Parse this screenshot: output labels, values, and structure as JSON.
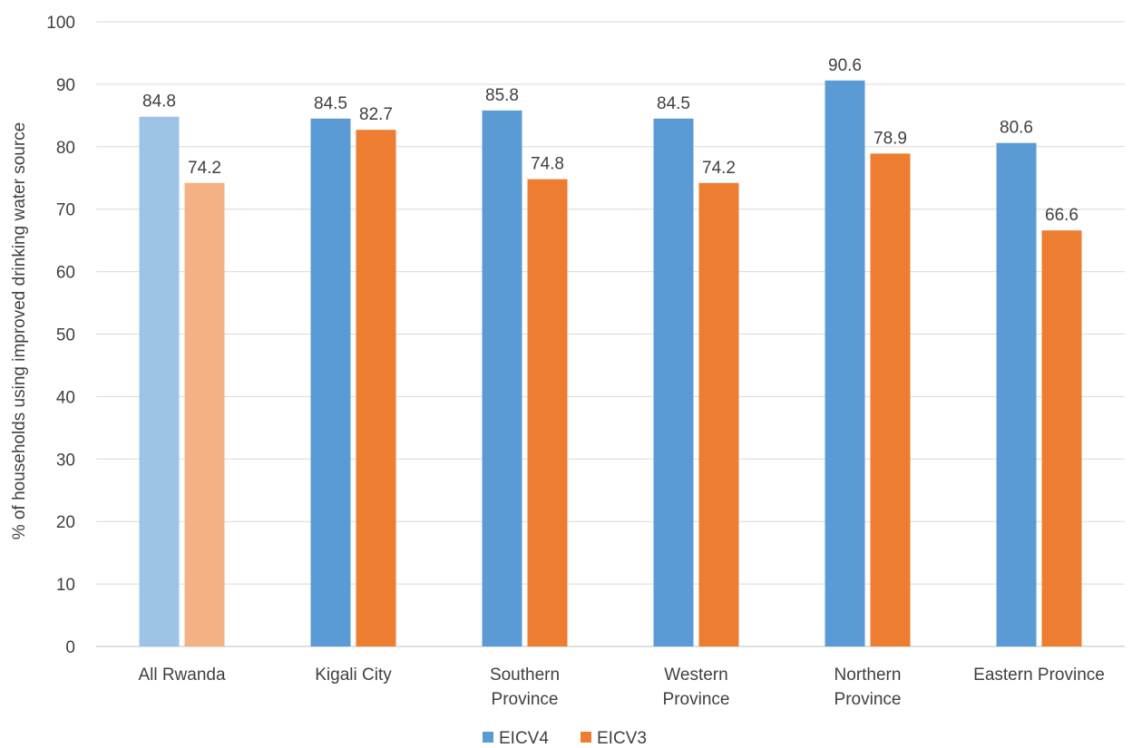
{
  "chart_data": {
    "type": "bar",
    "categories": [
      [
        "All Rwanda"
      ],
      [
        "Kigali City"
      ],
      [
        "Southern",
        "Province"
      ],
      [
        "Western",
        "Province"
      ],
      [
        "Northern",
        "Province"
      ],
      [
        "Eastern Province"
      ]
    ],
    "series": [
      {
        "name": "EICV4",
        "color": "#5b9bd5",
        "highlight_color": "#9dc3e6",
        "values": [
          84.8,
          84.5,
          85.8,
          84.5,
          90.6,
          80.6
        ],
        "labels": [
          "84.8",
          "84.5",
          "85.8",
          "84.5",
          "90.6",
          "80.6"
        ]
      },
      {
        "name": "EICV3",
        "color": "#ed7d31",
        "highlight_color": "#f4b183",
        "values": [
          74.2,
          82.7,
          74.8,
          74.2,
          78.9,
          66.6
        ],
        "labels": [
          "74.2",
          "82.7",
          "74.8",
          "74.2",
          "78.9",
          "66.6"
        ]
      }
    ],
    "highlighted_category_index": 0,
    "ylabel": "% of households using improved drinking water source",
    "xlabel": "",
    "ylim": [
      0,
      100
    ],
    "yticks": [
      0,
      10,
      20,
      30,
      40,
      50,
      60,
      70,
      80,
      90,
      100
    ],
    "grid": true,
    "legend_position": "bottom-center"
  }
}
